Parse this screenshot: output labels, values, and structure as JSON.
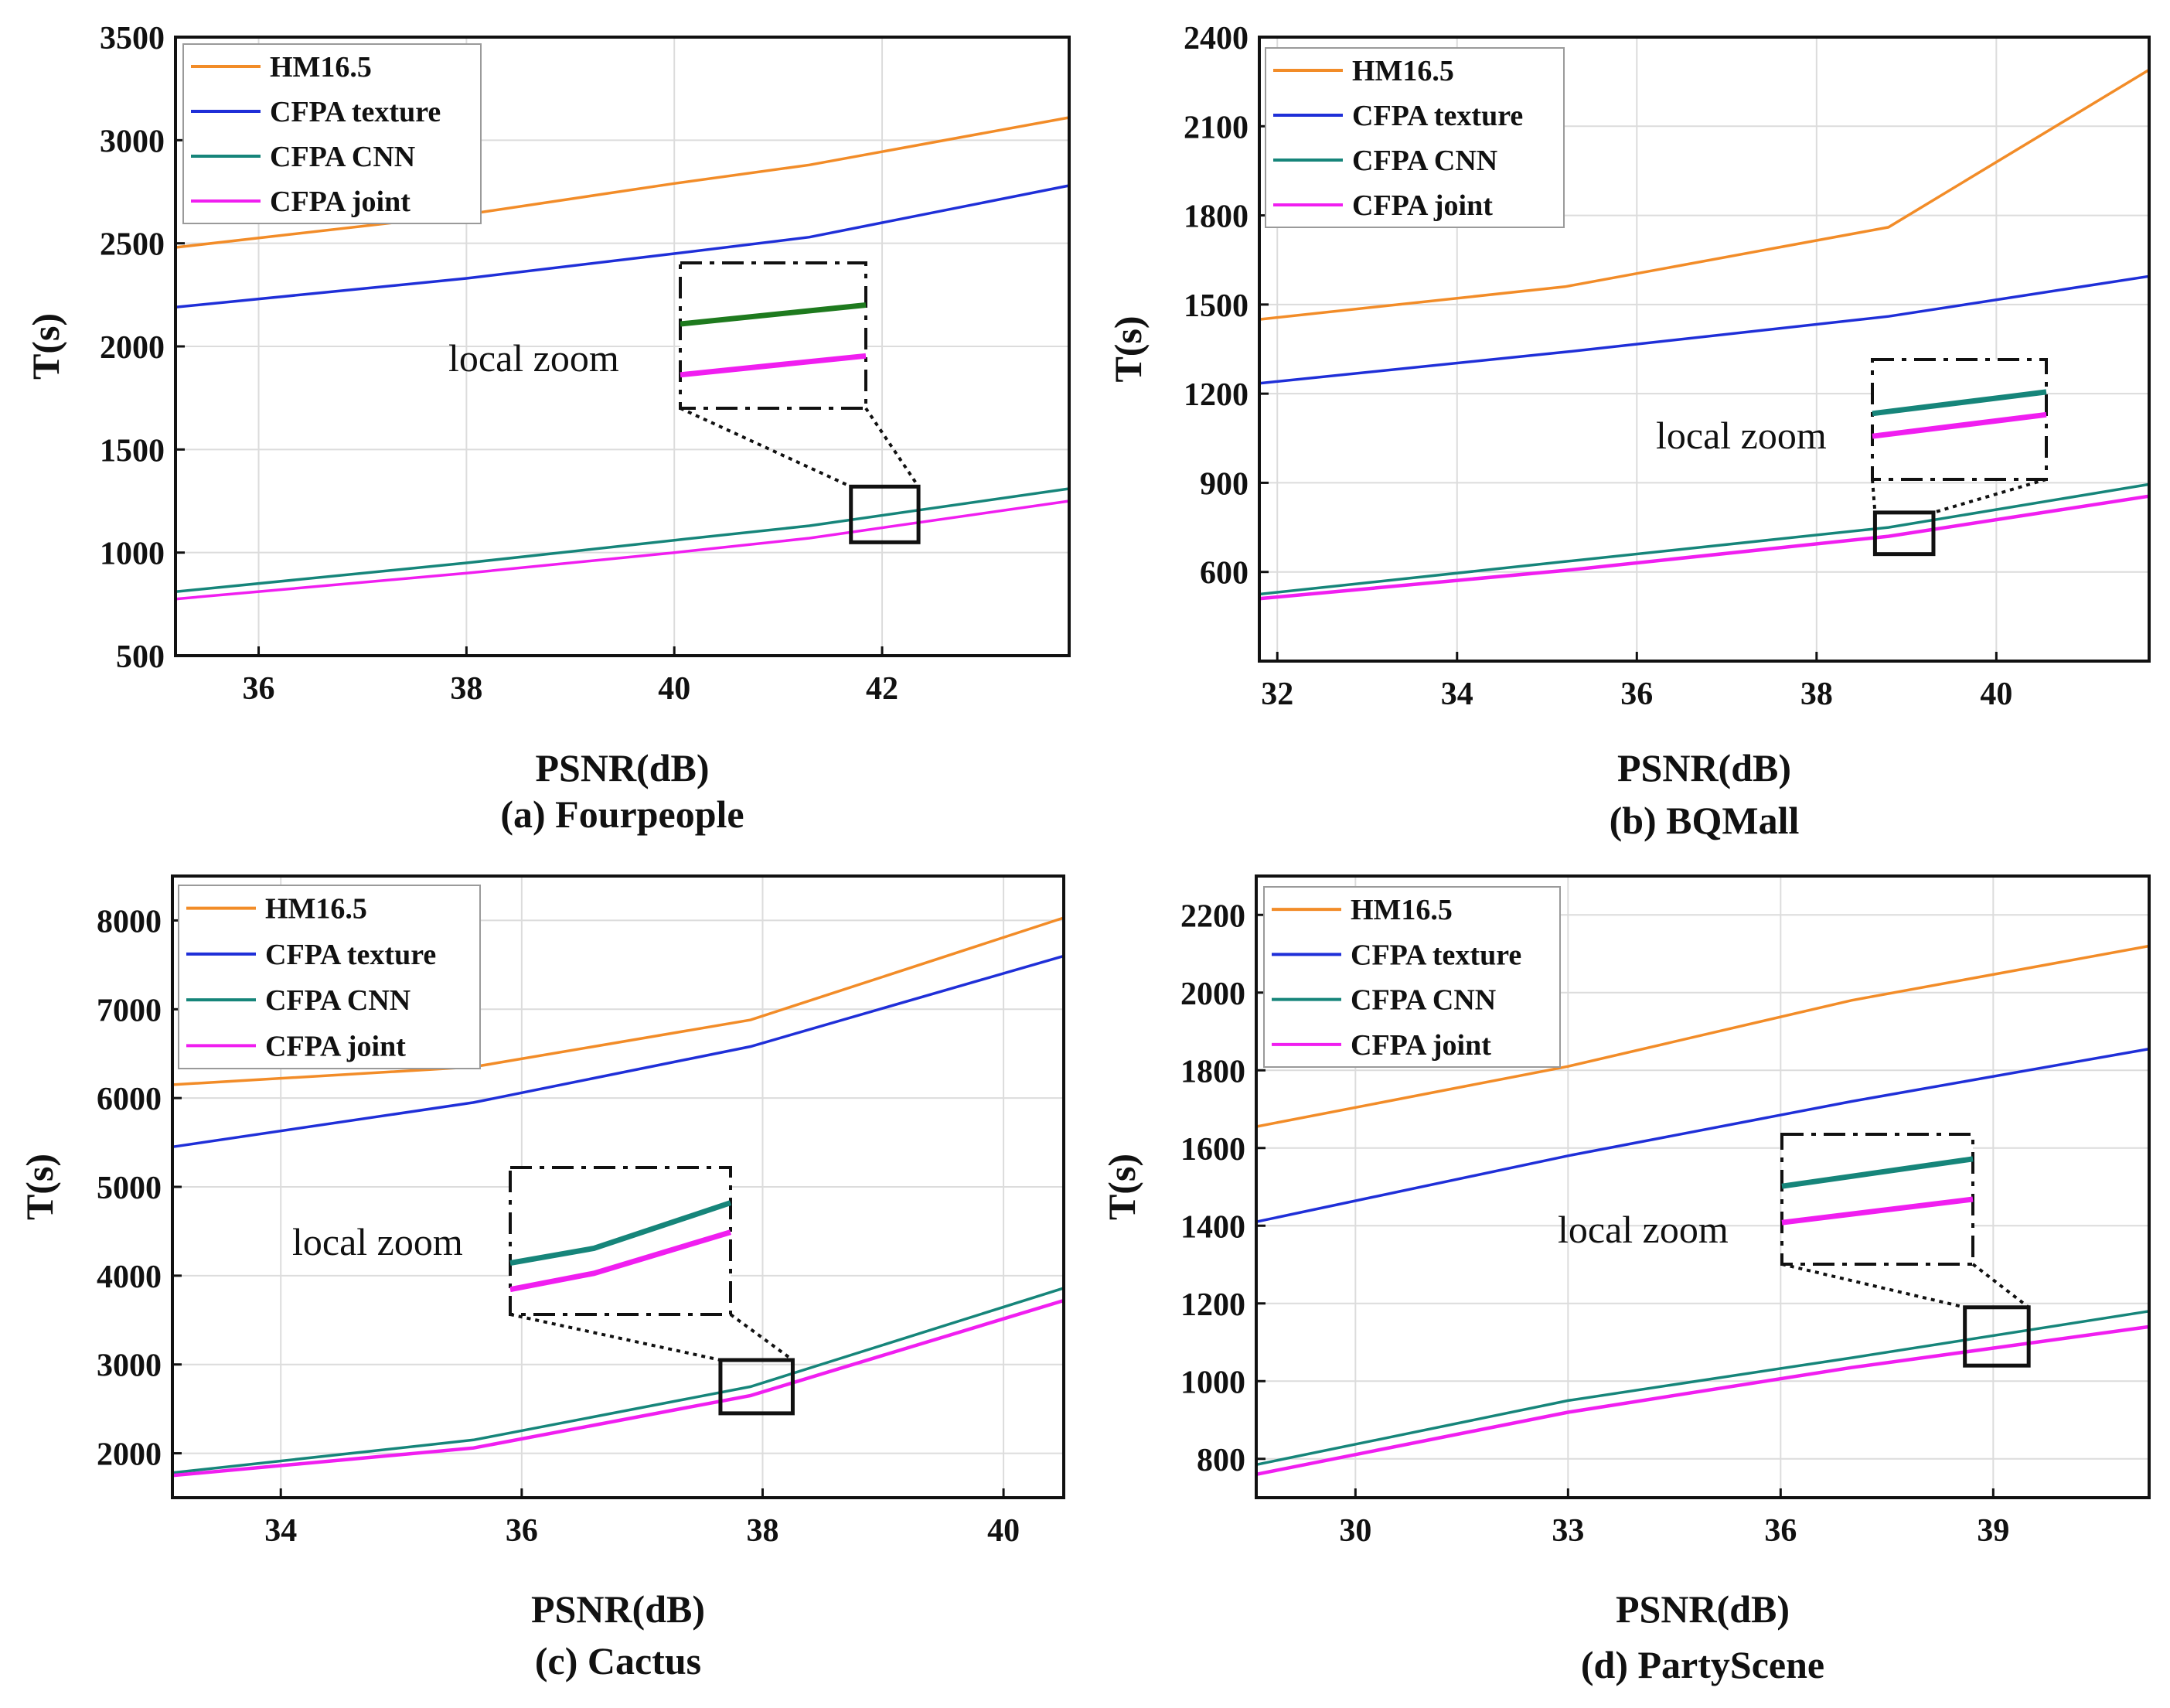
{
  "colors": {
    "HM16.5": "#f28c28",
    "CFPA texture": "#1f2fd8",
    "CFPA CNN": "#16857a",
    "CFPA joint": "#f01ef0",
    "zoom_green": "#1e7a1e"
  },
  "chart_data": [
    {
      "type": "line",
      "caption": "(a) Fourpeople",
      "xlabel": "PSNR(dB)",
      "ylabel": "T(s)",
      "xlim": [
        35.2,
        43.8
      ],
      "ylim": [
        500,
        3500
      ],
      "xticks": [
        36,
        38,
        40,
        42
      ],
      "yticks": [
        500,
        1000,
        1500,
        2000,
        2500,
        3000,
        3500
      ],
      "grid": true,
      "legend": "top-left",
      "annotation": "local zoom",
      "zoom_box": {
        "x": [
          41.7,
          42.35
        ],
        "y": [
          1050,
          1320
        ]
      },
      "series": [
        {
          "name": "HM16.5",
          "x": [
            35.2,
            38.0,
            40.0,
            41.3,
            43.8
          ],
          "y": [
            2480,
            2640,
            2790,
            2880,
            3110
          ]
        },
        {
          "name": "CFPA texture",
          "x": [
            35.2,
            38.0,
            40.0,
            41.3,
            43.8
          ],
          "y": [
            2190,
            2330,
            2450,
            2530,
            2780
          ]
        },
        {
          "name": "CFPA CNN",
          "x": [
            35.2,
            38.0,
            40.0,
            41.3,
            43.8
          ],
          "y": [
            810,
            950,
            1060,
            1130,
            1310
          ]
        },
        {
          "name": "CFPA joint",
          "x": [
            35.2,
            38.0,
            40.0,
            41.3,
            43.8
          ],
          "y": [
            775,
            900,
            1000,
            1070,
            1250
          ]
        }
      ]
    },
    {
      "type": "line",
      "caption": "(b) BQMall",
      "xlabel": "PSNR(dB)",
      "ylabel": "T(s)",
      "xlim": [
        31.8,
        41.7
      ],
      "ylim": [
        300,
        2400
      ],
      "xticks": [
        32,
        34,
        36,
        38,
        40
      ],
      "yticks": [
        600,
        900,
        1200,
        1500,
        1800,
        2100,
        2400
      ],
      "grid": true,
      "legend": "top-left",
      "annotation": "local zoom",
      "zoom_box": {
        "x": [
          38.65,
          39.3
        ],
        "y": [
          660,
          800
        ]
      },
      "series": [
        {
          "name": "HM16.5",
          "x": [
            31.8,
            35.2,
            38.8,
            41.7
          ],
          "y": [
            1450,
            1560,
            1760,
            2290
          ]
        },
        {
          "name": "CFPA texture",
          "x": [
            31.8,
            35.2,
            38.8,
            41.7
          ],
          "y": [
            1235,
            1340,
            1460,
            1595
          ]
        },
        {
          "name": "CFPA CNN",
          "x": [
            31.8,
            35.2,
            38.8,
            41.7
          ],
          "y": [
            525,
            635,
            750,
            895
          ]
        },
        {
          "name": "CFPA joint",
          "x": [
            31.8,
            35.2,
            38.8,
            41.7
          ],
          "y": [
            510,
            605,
            720,
            855
          ]
        }
      ]
    },
    {
      "type": "line",
      "caption": "(c) Cactus",
      "xlabel": "PSNR(dB)",
      "ylabel": "T(s)",
      "xlim": [
        33.1,
        40.5
      ],
      "ylim": [
        1500,
        8500
      ],
      "xticks": [
        34,
        36,
        38,
        40
      ],
      "yticks": [
        2000,
        3000,
        4000,
        5000,
        6000,
        7000,
        8000
      ],
      "grid": true,
      "legend": "top-left",
      "annotation": "local zoom",
      "zoom_box": {
        "x": [
          37.65,
          38.25
        ],
        "y": [
          2450,
          3050
        ]
      },
      "series": [
        {
          "name": "HM16.5",
          "x": [
            33.1,
            35.6,
            37.9,
            40.5
          ],
          "y": [
            6150,
            6350,
            6880,
            8030
          ]
        },
        {
          "name": "CFPA texture",
          "x": [
            33.1,
            35.6,
            37.9,
            40.5
          ],
          "y": [
            5450,
            5950,
            6580,
            7600
          ]
        },
        {
          "name": "CFPA CNN",
          "x": [
            33.1,
            35.6,
            37.9,
            40.5
          ],
          "y": [
            1780,
            2150,
            2750,
            3860
          ]
        },
        {
          "name": "CFPA joint",
          "x": [
            33.1,
            35.6,
            37.9,
            40.5
          ],
          "y": [
            1750,
            2060,
            2650,
            3720
          ]
        }
      ]
    },
    {
      "type": "line",
      "caption": "(d) PartyScene",
      "xlabel": "PSNR(dB)",
      "ylabel": "T(s)",
      "xlim": [
        28.6,
        41.2
      ],
      "ylim": [
        700,
        2300
      ],
      "xticks": [
        30,
        33,
        36,
        39
      ],
      "yticks": [
        800,
        1000,
        1200,
        1400,
        1600,
        1800,
        2000,
        2200
      ],
      "grid": true,
      "legend": "top-left",
      "annotation": "local zoom",
      "zoom_box": {
        "x": [
          38.6,
          39.5
        ],
        "y": [
          1040,
          1190
        ]
      },
      "series": [
        {
          "name": "HM16.5",
          "x": [
            28.6,
            33.0,
            37.0,
            41.2
          ],
          "y": [
            1655,
            1810,
            1980,
            2120
          ]
        },
        {
          "name": "CFPA texture",
          "x": [
            28.6,
            33.0,
            37.0,
            41.2
          ],
          "y": [
            1410,
            1580,
            1720,
            1855
          ]
        },
        {
          "name": "CFPA CNN",
          "x": [
            28.6,
            33.0,
            37.0,
            41.2
          ],
          "y": [
            785,
            950,
            1060,
            1180
          ]
        },
        {
          "name": "CFPA joint",
          "x": [
            28.6,
            33.0,
            37.0,
            41.2
          ],
          "y": [
            760,
            920,
            1035,
            1140
          ]
        }
      ]
    }
  ]
}
